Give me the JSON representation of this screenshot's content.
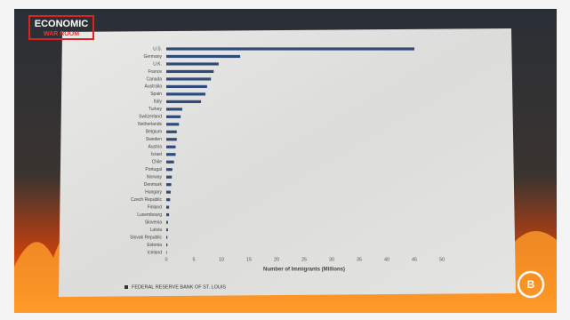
{
  "logo": {
    "line1": "ECONOMIC",
    "line2": "WAR ROOM"
  },
  "chart_data": {
    "type": "bar",
    "orientation": "horizontal",
    "x_label": "Number of Immigrants (Millions)",
    "source": "FEDERAL RESERVE BANK OF ST. LOUIS",
    "categories": [
      "U.S.",
      "Germany",
      "U.K.",
      "France",
      "Canada",
      "Australia",
      "Spain",
      "Italy",
      "Turkey",
      "Switzerland",
      "Netherlands",
      "Belgium",
      "Sweden",
      "Austria",
      "Israel",
      "Chile",
      "Portugal",
      "Norway",
      "Denmark",
      "Hungary",
      "Czech Republic",
      "Finland",
      "Luxembourg",
      "Slovenia",
      "Latvia",
      "Slovak Republic",
      "Estonia",
      "Iceland"
    ],
    "values": [
      45,
      13.4,
      9.5,
      8.6,
      8.1,
      7.4,
      7.1,
      6.3,
      2.9,
      2.6,
      2.3,
      1.9,
      1.9,
      1.7,
      1.7,
      1.4,
      1.1,
      1.0,
      0.9,
      0.8,
      0.7,
      0.5,
      0.5,
      0.3,
      0.3,
      0.2,
      0.2,
      0.1
    ],
    "color": "#2f4b7c",
    "xlim": [
      0,
      50
    ],
    "xticks": [
      0,
      5,
      10,
      15,
      20,
      25,
      30,
      35,
      40,
      45,
      50
    ]
  }
}
